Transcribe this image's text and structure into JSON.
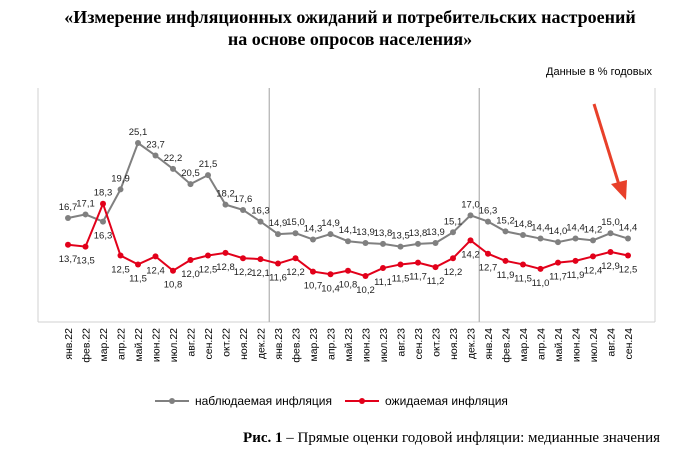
{
  "title_line1": "«Измерение инфляционных ожиданий и потребительских настроений",
  "title_line2": "на основе опросов населения»",
  "units": "Данные в % годовых",
  "caption_bold": "Рис. 1",
  "caption_text": " – Прямые оценки годовой инфляции: медианные значения",
  "chart_data": {
    "type": "line",
    "categories": [
      "янв.22",
      "фев.22",
      "мар.22",
      "апр.22",
      "май.22",
      "июн.22",
      "июл.22",
      "авг.22",
      "сен.22",
      "окт.22",
      "ноя.22",
      "дек.22",
      "янв.23",
      "фев.23",
      "мар.23",
      "апр.23",
      "май.23",
      "июн.23",
      "июл.23",
      "авг.23",
      "сен.23",
      "окт.23",
      "ноя.23",
      "дек.23",
      "янв.24",
      "фев.24",
      "мар.24",
      "апр.24",
      "май.24",
      "июн.24",
      "июл.24",
      "авг.24",
      "сен.24"
    ],
    "series": [
      {
        "name": "наблюдаемая  инфляция",
        "color": "#808080",
        "values": [
          16.7,
          17.1,
          16.3,
          19.9,
          25.1,
          23.7,
          22.2,
          20.5,
          21.5,
          18.2,
          17.6,
          16.3,
          14.9,
          15.0,
          14.3,
          14.9,
          14.1,
          13.9,
          13.8,
          13.5,
          13.8,
          13.9,
          15.1,
          17.0,
          16.3,
          15.2,
          14.8,
          14.4,
          14.0,
          14.4,
          14.2,
          15.0,
          14.4
        ]
      },
      {
        "name": "ожидаемая  инфляция",
        "color": "#e2001a",
        "values": [
          13.7,
          13.5,
          18.3,
          12.5,
          11.5,
          12.4,
          10.8,
          12.0,
          12.5,
          12.8,
          12.2,
          12.1,
          11.6,
          12.2,
          10.7,
          10.4,
          10.8,
          10.2,
          11.1,
          11.5,
          11.7,
          11.2,
          12.2,
          14.2,
          12.7,
          11.9,
          11.5,
          11.0,
          11.7,
          11.9,
          12.4,
          12.9,
          12.5
        ]
      }
    ],
    "decimal_separator": ",",
    "year_separators": true,
    "grid": false,
    "legend_position": "bottom",
    "annotation": "red arrow pointing at latest value"
  }
}
